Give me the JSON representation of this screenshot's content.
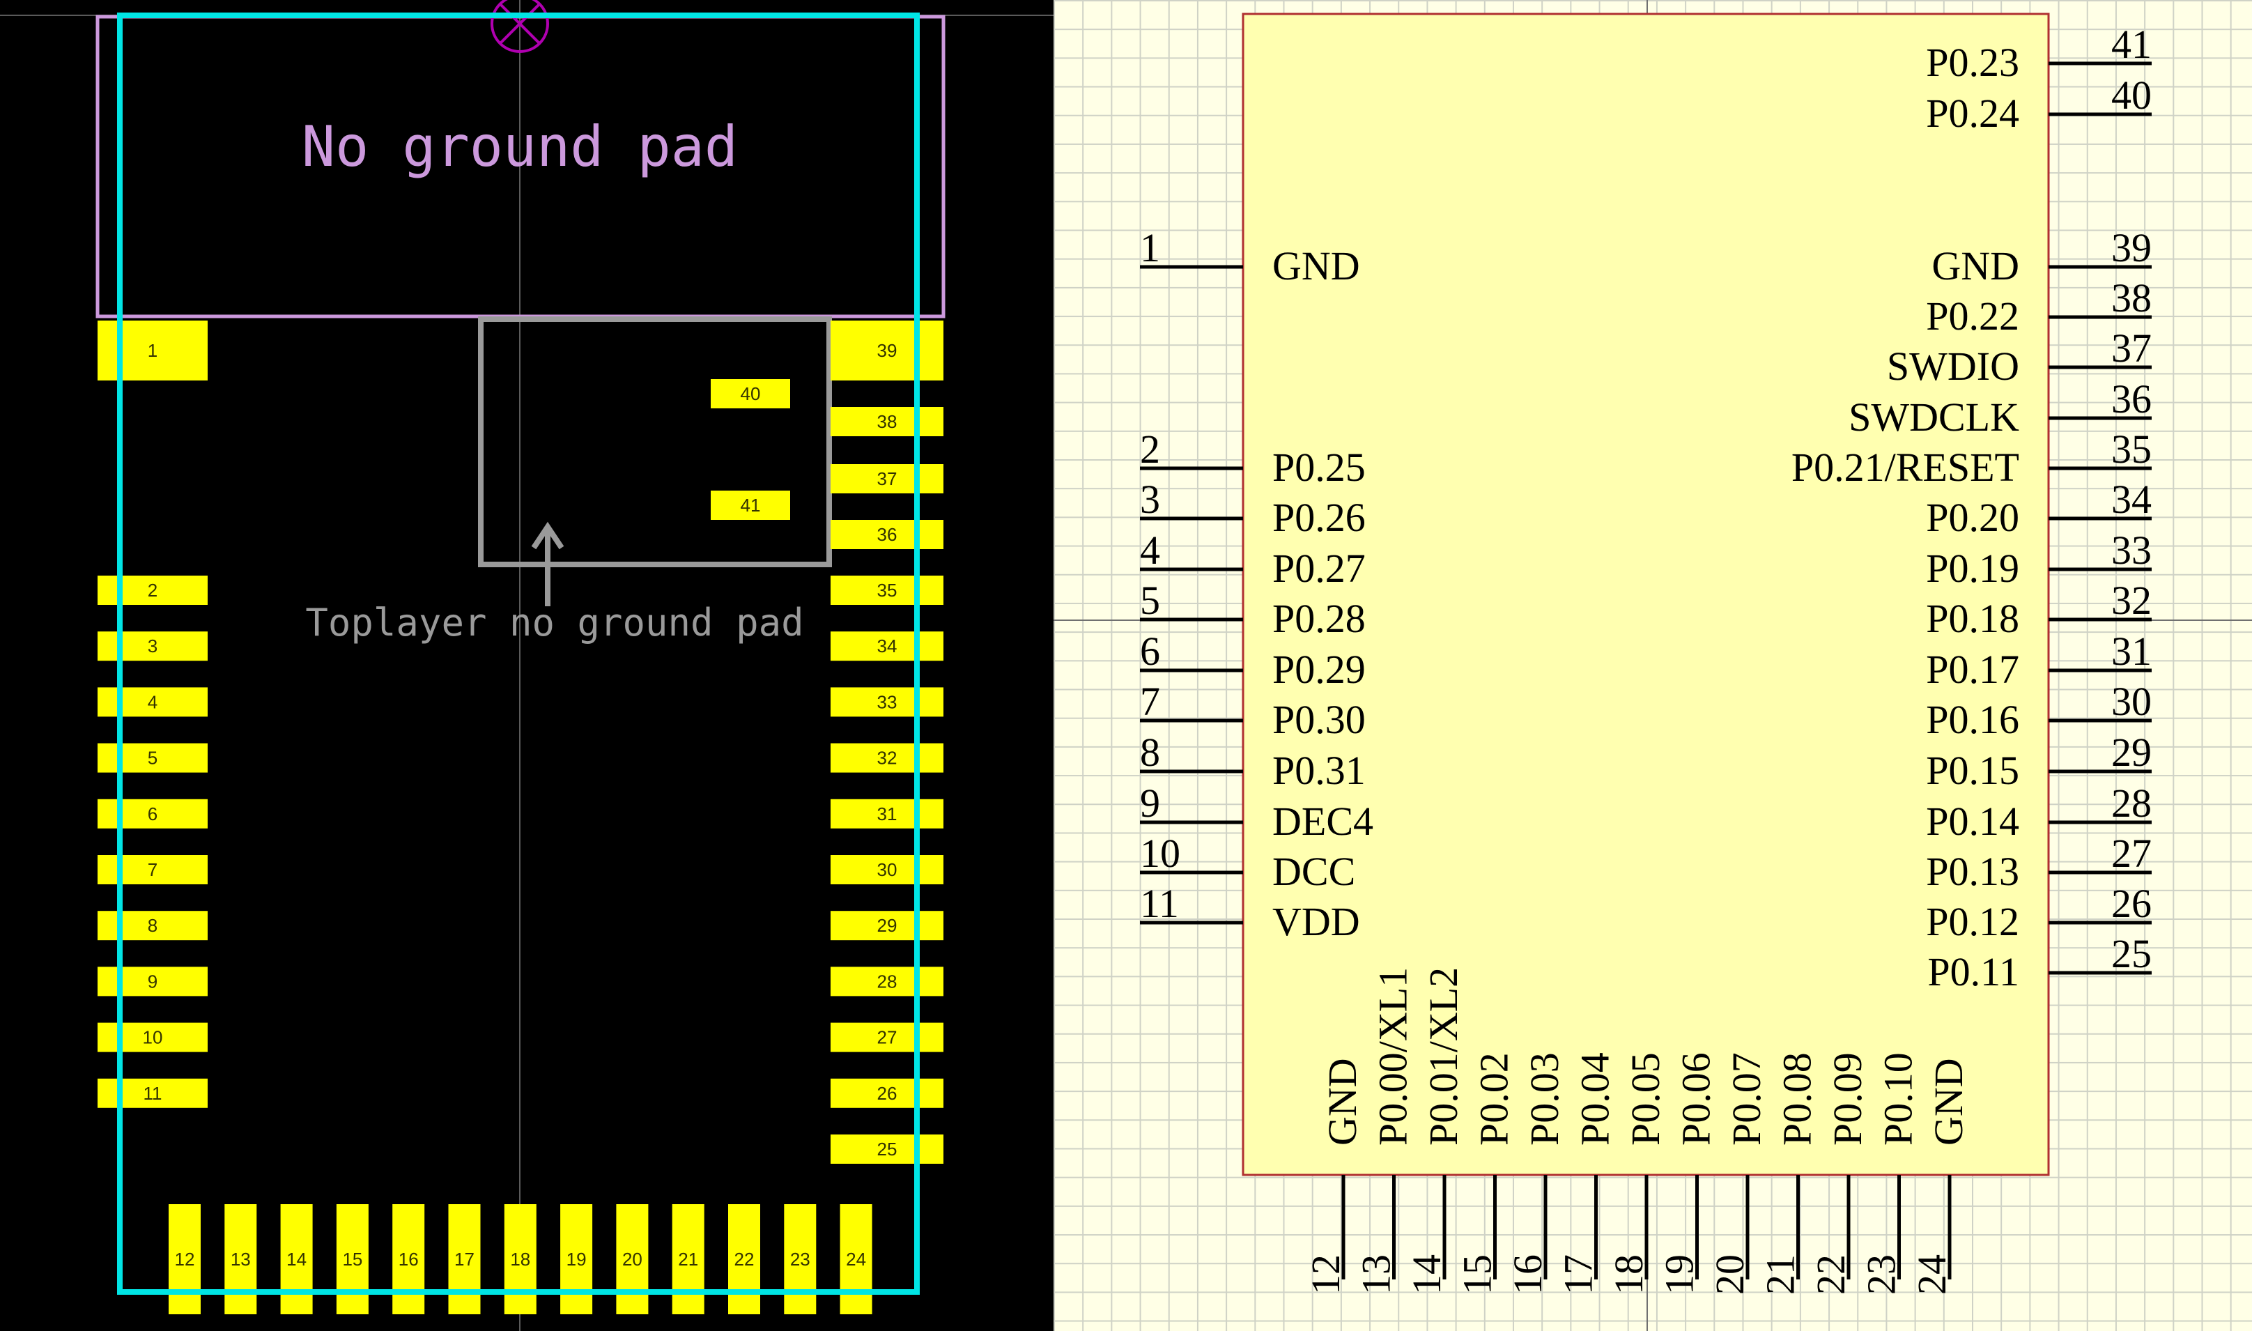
{
  "pcb": {
    "no_ground_label": "No ground pad",
    "toplayer_label": "Toplayer no ground pad",
    "colors": {
      "pad": "#ffff00",
      "outline": "#00e5e5",
      "keepout": "#cc99dd",
      "toplayer": "#9a9a9a",
      "background": "#000000"
    },
    "pads_left": [
      "1",
      "2",
      "3",
      "4",
      "5",
      "6",
      "7",
      "8",
      "9",
      "10",
      "11"
    ],
    "pads_bottom": [
      "12",
      "13",
      "14",
      "15",
      "16",
      "17",
      "18",
      "19",
      "20",
      "21",
      "22",
      "23",
      "24"
    ],
    "pads_right": [
      "25",
      "26",
      "27",
      "28",
      "29",
      "30",
      "31",
      "32",
      "33",
      "34",
      "35",
      "36",
      "37",
      "38",
      "39"
    ],
    "pads_inner": [
      "40",
      "41"
    ]
  },
  "schematic": {
    "colors": {
      "body": "#ffffb0",
      "border": "#b03030",
      "pin": "#000000"
    },
    "left_pins": [
      {
        "num": "1",
        "name": "GND"
      },
      {
        "num": "2",
        "name": "P0.25"
      },
      {
        "num": "3",
        "name": "P0.26"
      },
      {
        "num": "4",
        "name": "P0.27"
      },
      {
        "num": "5",
        "name": "P0.28"
      },
      {
        "num": "6",
        "name": "P0.29"
      },
      {
        "num": "7",
        "name": "P0.30"
      },
      {
        "num": "8",
        "name": "P0.31"
      },
      {
        "num": "9",
        "name": "DEC4"
      },
      {
        "num": "10",
        "name": "DCC"
      },
      {
        "num": "11",
        "name": "VDD"
      }
    ],
    "right_pins": [
      {
        "num": "41",
        "name": "P0.23"
      },
      {
        "num": "40",
        "name": "P0.24"
      },
      {
        "num": "39",
        "name": "GND"
      },
      {
        "num": "38",
        "name": "P0.22"
      },
      {
        "num": "37",
        "name": "SWDIO"
      },
      {
        "num": "36",
        "name": "SWDCLK"
      },
      {
        "num": "35",
        "name": "P0.21/RESET"
      },
      {
        "num": "34",
        "name": "P0.20"
      },
      {
        "num": "33",
        "name": "P0.19"
      },
      {
        "num": "32",
        "name": "P0.18"
      },
      {
        "num": "31",
        "name": "P0.17"
      },
      {
        "num": "30",
        "name": "P0.16"
      },
      {
        "num": "29",
        "name": "P0.15"
      },
      {
        "num": "28",
        "name": "P0.14"
      },
      {
        "num": "27",
        "name": "P0.13"
      },
      {
        "num": "26",
        "name": "P0.12"
      },
      {
        "num": "25",
        "name": "P0.11"
      }
    ],
    "bottom_pins": [
      {
        "num": "12",
        "name": "GND"
      },
      {
        "num": "13",
        "name": "P0.00/XL1"
      },
      {
        "num": "14",
        "name": "P0.01/XL2"
      },
      {
        "num": "15",
        "name": "P0.02"
      },
      {
        "num": "16",
        "name": "P0.03"
      },
      {
        "num": "17",
        "name": "P0.04"
      },
      {
        "num": "18",
        "name": "P0.05"
      },
      {
        "num": "19",
        "name": "P0.06"
      },
      {
        "num": "20",
        "name": "P0.07"
      },
      {
        "num": "21",
        "name": "P0.08"
      },
      {
        "num": "22",
        "name": "P0.09"
      },
      {
        "num": "23",
        "name": "P0.10"
      },
      {
        "num": "24",
        "name": "GND"
      }
    ]
  }
}
